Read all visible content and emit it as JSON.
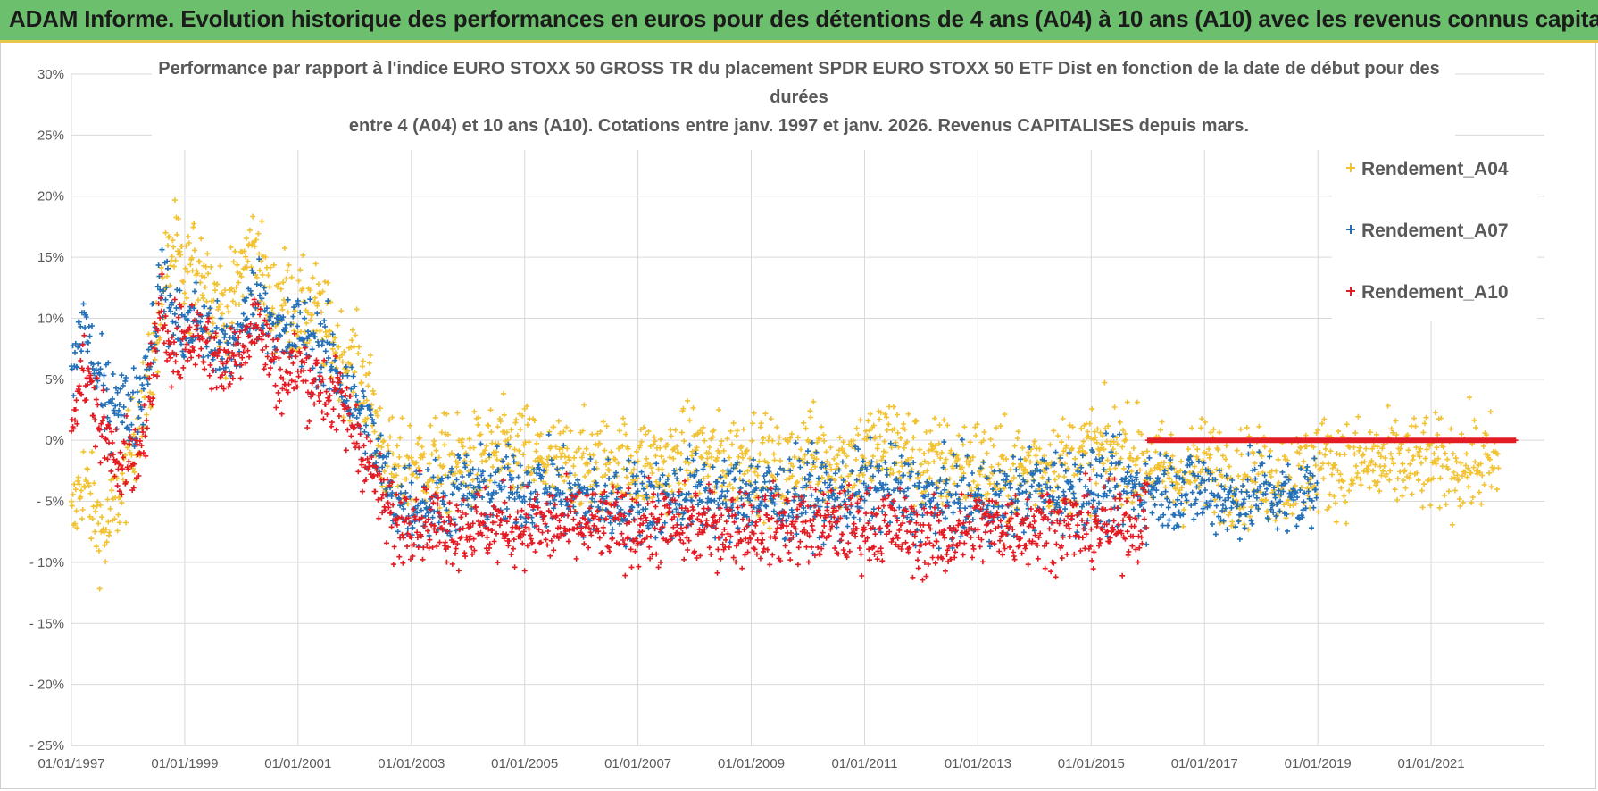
{
  "header": {
    "title": "ADAM Informe. Evolution historique des performances en euros pour des détentions de 4 ans (A04) à 10 ans (A10) avec les revenus connus capitalisés"
  },
  "colors": {
    "a04": "#f2c233",
    "a07": "#2470b8",
    "a10": "#e31b23",
    "banner": "#6cbf6c",
    "banner_border": "#e8c64a"
  },
  "chart_data": {
    "type": "scatter",
    "title_lines": [
      "Performance par rapport à l'indice EURO STOXX 50 GROSS TR  du placement SPDR EURO STOXX 50 ETF Dist en fonction de la date de début pour des",
      "durées",
      "entre 4 (A04) et 10 ans (A10). Cotations entre janv. 1997 et janv. 2026. Revenus CAPITALISES depuis mars."
    ],
    "xlabel": "",
    "ylabel": "",
    "x_range": [
      1997.0,
      2023.0
    ],
    "ylim": [
      -25,
      30
    ],
    "y_ticks": [
      30,
      25,
      20,
      15,
      10,
      5,
      0,
      -5,
      -10,
      -15,
      -20,
      -25
    ],
    "y_tick_labels": [
      "30%",
      "25%",
      "20%",
      "15%",
      "10%",
      "5%",
      "0%",
      "- 5%",
      "- 10%",
      "- 15%",
      "- 20%",
      "- 25%"
    ],
    "x_ticks": [
      1997,
      1999,
      2001,
      2003,
      2005,
      2007,
      2009,
      2011,
      2013,
      2015,
      2017,
      2019,
      2021
    ],
    "x_tick_labels": [
      "01/01/1997",
      "01/01/1999",
      "01/01/2001",
      "01/01/2003",
      "01/01/2005",
      "01/01/2007",
      "01/01/2009",
      "01/01/2011",
      "01/01/2013",
      "01/01/2015",
      "01/01/2017",
      "01/01/2019",
      "01/01/2021"
    ],
    "legend_position": "top-right",
    "series": [
      {
        "name": "Rendement_A04",
        "color_key": "a04",
        "range": [
          1997.0,
          2022.2
        ],
        "x": [
          1997.0,
          1997.2,
          1997.4,
          1997.6,
          1997.8,
          1998.0,
          1998.2,
          1998.4,
          1998.6,
          1998.8,
          1999.0,
          1999.25,
          1999.5,
          1999.75,
          2000.0,
          2000.25,
          2000.5,
          2000.75,
          2001.0,
          2001.25,
          2001.5,
          2001.75,
          2002.0,
          2002.25,
          2002.5,
          2002.75,
          2003.0,
          2003.5,
          2004.0,
          2004.5,
          2005.0,
          2005.5,
          2006.0,
          2006.5,
          2007.0,
          2007.5,
          2008.0,
          2008.5,
          2009.0,
          2009.5,
          2010.0,
          2010.5,
          2011.0,
          2011.5,
          2012.0,
          2012.5,
          2013.0,
          2013.5,
          2014.0,
          2014.5,
          2015.0,
          2015.5,
          2016.0,
          2016.5,
          2017.0,
          2017.5,
          2018.0,
          2018.5,
          2019.0,
          2019.5,
          2020.0,
          2020.5,
          2021.0,
          2021.5,
          2022.0,
          2022.2
        ],
        "y": [
          -7,
          -3,
          -6,
          -8,
          -5,
          -2,
          2,
          5,
          12,
          16,
          13,
          15,
          12,
          10,
          14,
          16,
          11,
          12,
          10,
          11,
          9,
          7,
          6,
          4,
          -1,
          -3,
          -2,
          -2,
          -2,
          -1,
          -1,
          -2,
          -2,
          -2,
          -2,
          -2,
          -1,
          -2,
          -1,
          -3,
          -1,
          -2,
          -1,
          0,
          -2,
          -2,
          -2,
          -3,
          -2,
          -2,
          -1,
          -1,
          -2,
          -3,
          -2,
          -3,
          -3,
          -3,
          -2,
          -2,
          -2,
          -2,
          -2,
          -2,
          -2,
          -2
        ],
        "spread": 3.0
      },
      {
        "name": "Rendement_A07",
        "color_key": "a07",
        "range": [
          1997.0,
          2019.0
        ],
        "x": [
          1997.0,
          1997.2,
          1997.4,
          1997.6,
          1997.8,
          1998.0,
          1998.2,
          1998.4,
          1998.6,
          1998.8,
          1999.0,
          1999.25,
          1999.5,
          1999.75,
          2000.0,
          2000.25,
          2000.5,
          2000.75,
          2001.0,
          2001.25,
          2001.5,
          2001.75,
          2002.0,
          2002.25,
          2002.5,
          2002.75,
          2003.0,
          2003.5,
          2004.0,
          2004.5,
          2005.0,
          2005.5,
          2006.0,
          2006.5,
          2007.0,
          2007.5,
          2008.0,
          2008.5,
          2009.0,
          2009.5,
          2010.0,
          2010.5,
          2011.0,
          2011.5,
          2012.0,
          2012.5,
          2013.0,
          2013.5,
          2014.0,
          2014.5,
          2015.0,
          2015.5,
          2016.0,
          2016.5,
          2017.0,
          2017.5,
          2018.0,
          2018.5,
          2019.0
        ],
        "y": [
          5,
          10,
          6,
          3,
          4,
          2,
          3,
          8,
          13,
          10,
          9,
          10,
          8,
          7,
          9,
          12,
          10,
          8,
          9,
          8,
          7,
          5,
          3,
          1,
          -3,
          -5,
          -5,
          -5,
          -4,
          -4,
          -4,
          -4,
          -5,
          -5,
          -5,
          -5,
          -4,
          -5,
          -4,
          -5,
          -4,
          -5,
          -4,
          -4,
          -5,
          -5,
          -5,
          -5,
          -4,
          -4,
          -4,
          -4,
          -4,
          -4,
          -4,
          -5,
          -4,
          -5,
          -4
        ],
        "spread": 2.6
      },
      {
        "name": "Rendement_A10",
        "color_key": "a10",
        "range": [
          1997.0,
          2022.5
        ],
        "x": [
          1997.0,
          1997.2,
          1997.4,
          1997.6,
          1997.8,
          1998.0,
          1998.2,
          1998.4,
          1998.6,
          1998.8,
          1999.0,
          1999.25,
          1999.5,
          1999.75,
          2000.0,
          2000.25,
          2000.5,
          2000.75,
          2001.0,
          2001.25,
          2001.5,
          2001.75,
          2002.0,
          2002.25,
          2002.5,
          2002.75,
          2003.0,
          2003.5,
          2004.0,
          2004.5,
          2005.0,
          2005.5,
          2006.0,
          2006.5,
          2007.0,
          2007.5,
          2008.0,
          2008.5,
          2009.0,
          2009.5,
          2010.0,
          2010.5,
          2011.0,
          2011.5,
          2012.0,
          2012.5,
          2013.0,
          2013.5,
          2014.0,
          2014.5,
          2015.0,
          2015.5,
          2016.0
        ],
        "y": [
          2,
          6,
          3,
          0,
          -1,
          -2,
          -2,
          5,
          10,
          8,
          8,
          9,
          7,
          6,
          8,
          10,
          7,
          5,
          6,
          5,
          4,
          3,
          1,
          -2,
          -5,
          -7,
          -6,
          -7,
          -7,
          -7,
          -7,
          -7,
          -7,
          -7,
          -7,
          -7,
          -7,
          -7,
          -7,
          -7,
          -7,
          -7,
          -7,
          -7,
          -8,
          -8,
          -7,
          -7,
          -7,
          -7,
          -7,
          -7,
          -6
        ],
        "spread": 2.4,
        "flat_from": 2016.0,
        "flat_value": 0
      }
    ]
  }
}
